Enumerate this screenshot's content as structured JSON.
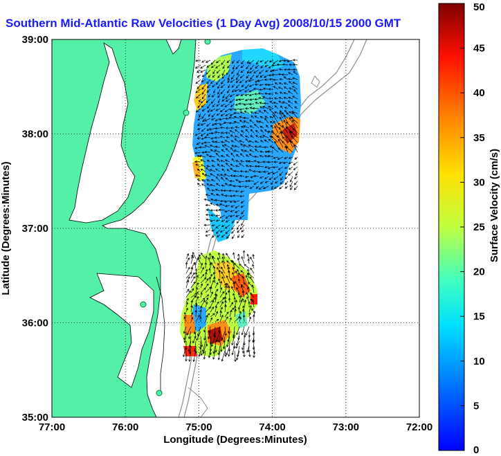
{
  "title": "Southern Mid-Atlantic Raw Velocities (1 Day Avg) 2008/10/15 2000 GMT",
  "map": {
    "xlabel": "Longitude (Degrees:Minutes)",
    "ylabel": "Latitude (Degrees:Minutes)",
    "x_ticks": [
      "77:00",
      "76:00",
      "75:00",
      "74:00",
      "73:00",
      "72:00"
    ],
    "y_ticks": [
      "39:00",
      "38:00",
      "37:00",
      "36:00",
      "35:00"
    ],
    "grid": "dotted",
    "land_color": "#55f0a8",
    "water_color": "#ffffff"
  },
  "colorbar": {
    "label": "Surface Velocity (cm/s)",
    "ticks": [
      "50",
      "45",
      "40",
      "35",
      "30",
      "25",
      "20",
      "15",
      "10",
      "5",
      "0"
    ],
    "min": 0,
    "max": 50,
    "colormap": "jet"
  }
}
